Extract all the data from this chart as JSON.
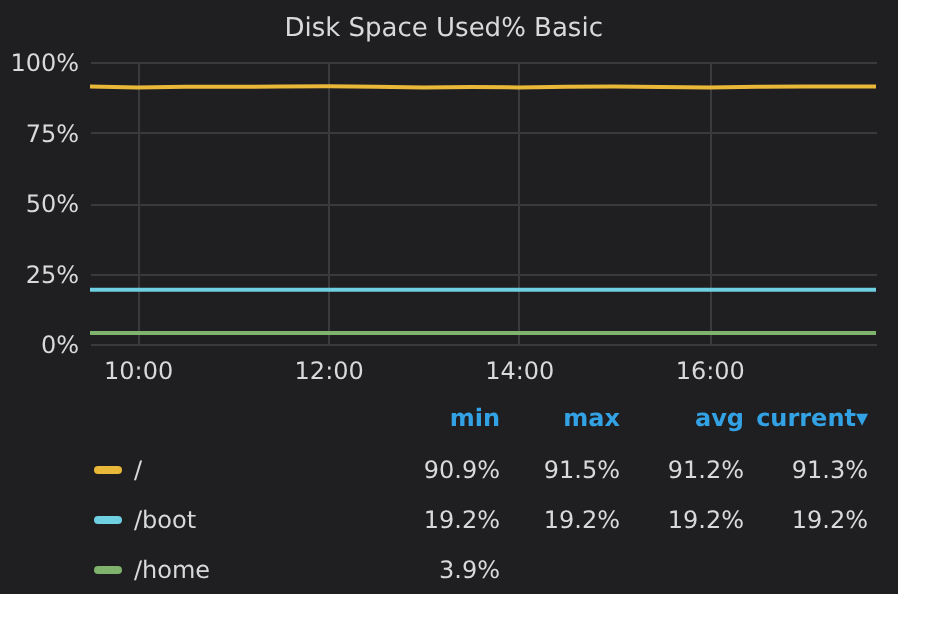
{
  "chart_data": {
    "type": "line",
    "title": "Disk Space Used% Basic",
    "x": [
      9.5,
      10,
      10.5,
      11,
      11.5,
      12,
      12.5,
      13,
      13.5,
      14,
      14.5,
      15,
      15.5,
      16,
      16.5,
      17,
      17.5,
      17.75
    ],
    "series": [
      {
        "name": "/",
        "color": "#eab839",
        "values": [
          91.3,
          91.0,
          91.2,
          91.2,
          91.3,
          91.4,
          91.2,
          91.0,
          91.1,
          91.0,
          91.2,
          91.3,
          91.1,
          91.0,
          91.2,
          91.3,
          91.3,
          91.3
        ]
      },
      {
        "name": "/boot",
        "color": "#6ed0e0",
        "values": [
          19.2,
          19.2,
          19.2,
          19.2,
          19.2,
          19.2,
          19.2,
          19.2,
          19.2,
          19.2,
          19.2,
          19.2,
          19.2,
          19.2,
          19.2,
          19.2,
          19.2,
          19.2
        ]
      },
      {
        "name": "/home",
        "color": "#7eb26d",
        "values": [
          3.9,
          3.9,
          3.9,
          3.9,
          3.9,
          3.9,
          3.9,
          3.9,
          3.9,
          3.9,
          3.9,
          3.9,
          3.9,
          3.9,
          3.9,
          3.9,
          3.9,
          3.9
        ]
      }
    ],
    "xlim": [
      9.5,
      17.75
    ],
    "xticks": [
      {
        "value": 10,
        "label": "10:00"
      },
      {
        "value": 12,
        "label": "12:00"
      },
      {
        "value": 14,
        "label": "14:00"
      },
      {
        "value": 16,
        "label": "16:00"
      }
    ],
    "ylim": [
      0,
      100
    ],
    "yticks": [
      {
        "value": 0,
        "label": "0%"
      },
      {
        "value": 25,
        "label": "25%"
      },
      {
        "value": 50,
        "label": "50%"
      },
      {
        "value": 75,
        "label": "75%"
      },
      {
        "value": 100,
        "label": "100%"
      }
    ],
    "grid": true,
    "legend": "bottom",
    "annotations": [
      "min",
      "max",
      "avg",
      "current▾",
      "90.9%",
      "91.5%",
      "91.2%",
      "91.3%",
      "19.2%",
      "19.2%",
      "19.2%",
      "19.2%",
      "3.9%"
    ]
  }
}
